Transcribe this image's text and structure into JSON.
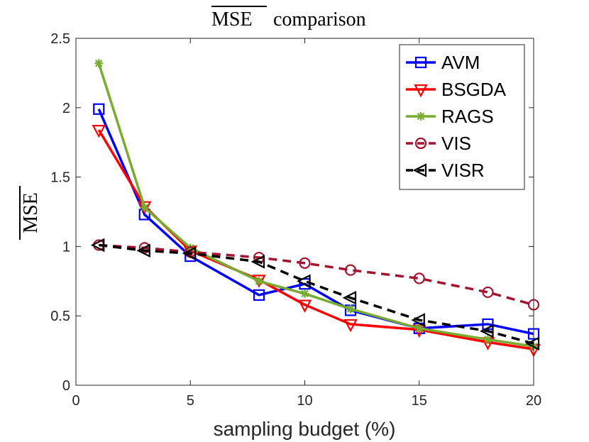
{
  "chart_data": {
    "type": "line",
    "title_main": "MSE",
    "title_rest": " comparison",
    "xlabel": "sampling budget (%)",
    "ylabel": "MSE",
    "xlim": [
      0,
      20
    ],
    "ylim": [
      0,
      2.5
    ],
    "xticks": [
      0,
      5,
      10,
      15,
      20
    ],
    "yticks": [
      0,
      0.5,
      1,
      1.5,
      2,
      2.5
    ],
    "xtick_labels": [
      "0",
      "5",
      "10",
      "15",
      "20"
    ],
    "ytick_labels": [
      "0",
      "0.5",
      "1",
      "1.5",
      "2",
      "2.5"
    ],
    "legend_position": "top-right",
    "series": [
      {
        "name": "AVM",
        "color": "#0000ff",
        "marker": "square",
        "dashed": false,
        "x": [
          1,
          3,
          5,
          8,
          10,
          12,
          15,
          18,
          20
        ],
        "y": [
          1.99,
          1.23,
          0.93,
          0.65,
          0.73,
          0.54,
          0.41,
          0.44,
          0.37
        ]
      },
      {
        "name": "BSGDA",
        "color": "#ff0000",
        "marker": "triangle-down",
        "dashed": false,
        "x": [
          1,
          3,
          5,
          8,
          10,
          12,
          15,
          18,
          20
        ],
        "y": [
          1.84,
          1.29,
          0.97,
          0.76,
          0.58,
          0.44,
          0.4,
          0.31,
          0.26
        ]
      },
      {
        "name": "RAGS",
        "color": "#77ac30",
        "marker": "asterisk",
        "dashed": false,
        "x": [
          1,
          3,
          5,
          8,
          10,
          12,
          15,
          18,
          20
        ],
        "y": [
          2.32,
          1.28,
          0.99,
          0.75,
          0.66,
          0.55,
          0.41,
          0.33,
          0.28
        ]
      },
      {
        "name": "VIS",
        "color": "#a2142f",
        "marker": "circle",
        "dashed": true,
        "x": [
          1,
          3,
          5,
          8,
          10,
          12,
          15,
          18,
          20
        ],
        "y": [
          1.01,
          0.99,
          0.96,
          0.92,
          0.88,
          0.83,
          0.77,
          0.67,
          0.58
        ]
      },
      {
        "name": "VISR",
        "color": "#000000",
        "marker": "triangle-left",
        "dashed": true,
        "x": [
          1,
          3,
          5,
          8,
          10,
          12,
          15,
          18,
          20
        ],
        "y": [
          1.01,
          0.97,
          0.95,
          0.89,
          0.75,
          0.63,
          0.47,
          0.39,
          0.3
        ]
      }
    ]
  }
}
